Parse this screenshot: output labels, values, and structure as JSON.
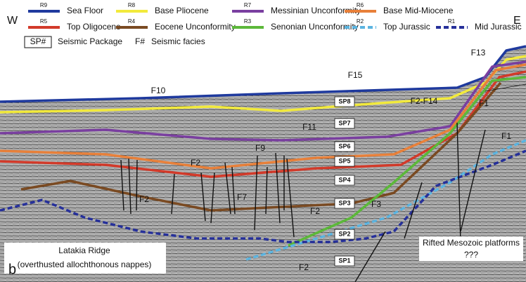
{
  "compass": {
    "west": "W",
    "east": "E"
  },
  "panel_label": "b",
  "legend": {
    "horizons": [
      {
        "code": "R9",
        "name": "Sea Floor",
        "color": "#1f3a9e",
        "style": "solid"
      },
      {
        "code": "R8",
        "name": "Base Pliocene",
        "color": "#f2ea3c",
        "style": "solid"
      },
      {
        "code": "R7",
        "name": "Messinian Unconformity",
        "color": "#7a3fa0",
        "style": "solid"
      },
      {
        "code": "R6",
        "name": "Base Mid-Miocene",
        "color": "#e8803a",
        "style": "solid"
      },
      {
        "code": "R5",
        "name": "Top Oligocene",
        "color": "#d23a2a",
        "style": "solid"
      },
      {
        "code": "R4",
        "name": "Eocene Unconformity",
        "color": "#7a4a22",
        "style": "solid"
      },
      {
        "code": "R3",
        "name": "Senonian Unconformity",
        "color": "#5cb83a",
        "style": "solid"
      },
      {
        "code": "R2",
        "name": "Top Jurassic",
        "color": "#5bb4e0",
        "style": "dashed"
      },
      {
        "code": "R1",
        "name": "Mid Jurassic",
        "color": "#26309a",
        "style": "dashed"
      }
    ],
    "package": {
      "symbol": "SP#",
      "name": "Seismic Package"
    },
    "facies": {
      "symbol": "F#",
      "name": "Seismic facies"
    }
  },
  "packages": [
    "SP8",
    "SP7",
    "SP6",
    "SP5",
    "SP4",
    "SP3",
    "SP2",
    "SP1"
  ],
  "facies_labels": [
    "F10",
    "F15",
    "F2-F14",
    "F11",
    "F9",
    "F2",
    "F7",
    "F2",
    "F2",
    "F3",
    "F1",
    "F1",
    "F2",
    "F13"
  ],
  "annotations": {
    "platforms": "Rifted Mesozoic platforms",
    "platforms_query": "???",
    "ridge": "Latakia Ridge",
    "ridge_note": "(overthusted allochthonous nappes)"
  }
}
